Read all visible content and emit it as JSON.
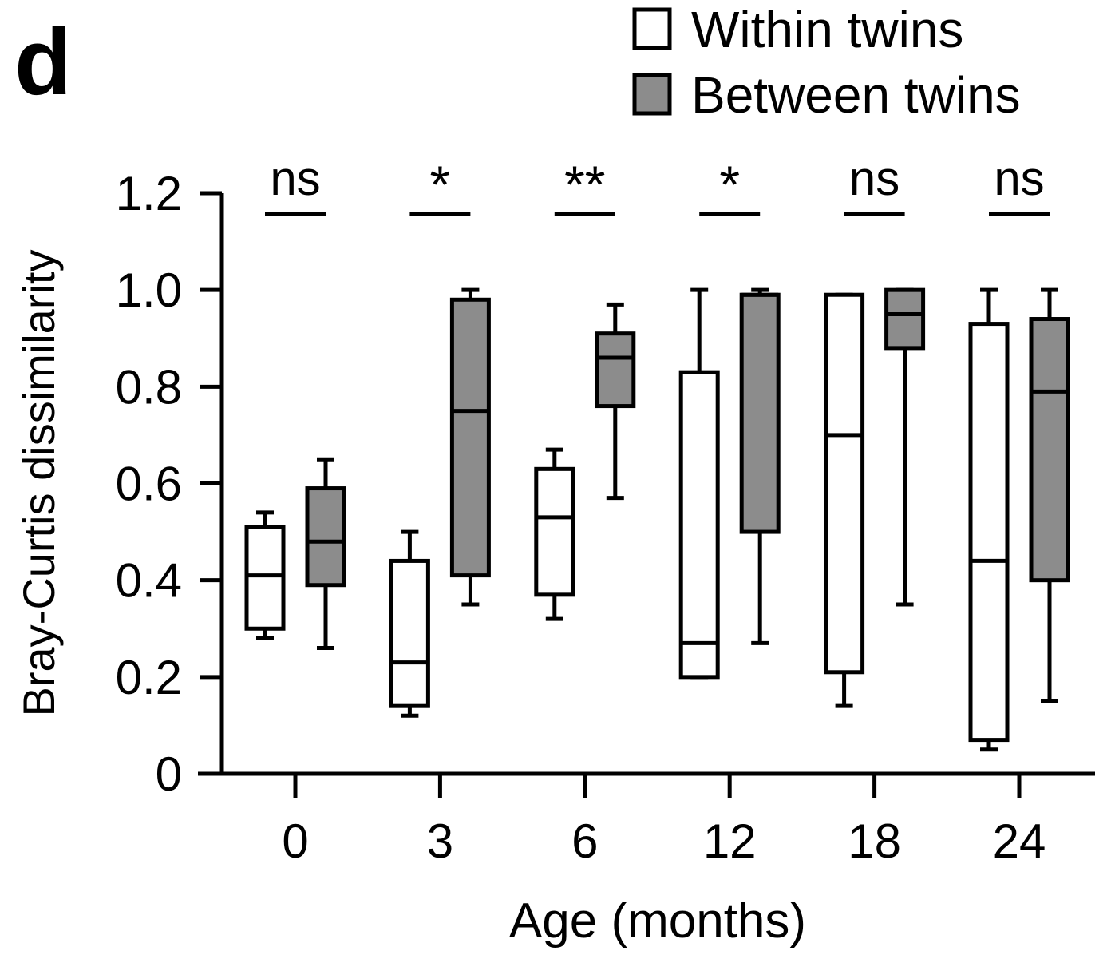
{
  "panel_label": "d",
  "chart_data": {
    "type": "box",
    "ylabel": "Bray-Curtis dissimilarity",
    "xlabel": "Age (months)",
    "ylim": [
      0,
      1.2
    ],
    "yticks": [
      "0",
      "0.2",
      "0.4",
      "0.6",
      "0.8",
      "1.0",
      "1.2"
    ],
    "categories": [
      "0",
      "3",
      "6",
      "12",
      "18",
      "24"
    ],
    "legend_position": "top-right",
    "grid": false,
    "series": [
      {
        "name": "Within twins",
        "color": "#ffffff",
        "boxes": [
          {
            "min": 0.28,
            "q1": 0.3,
            "median": 0.41,
            "q3": 0.51,
            "max": 0.54
          },
          {
            "min": 0.12,
            "q1": 0.14,
            "median": 0.23,
            "q3": 0.44,
            "max": 0.5
          },
          {
            "min": 0.32,
            "q1": 0.37,
            "median": 0.53,
            "q3": 0.63,
            "max": 0.67
          },
          {
            "min": 0.2,
            "q1": 0.2,
            "median": 0.27,
            "q3": 0.83,
            "max": 1.0
          },
          {
            "min": 0.14,
            "q1": 0.21,
            "median": 0.7,
            "q3": 0.99,
            "max": 0.99
          },
          {
            "min": 0.05,
            "q1": 0.07,
            "median": 0.44,
            "q3": 0.93,
            "max": 1.0
          }
        ]
      },
      {
        "name": "Between twins",
        "color": "#8c8c8c",
        "boxes": [
          {
            "min": 0.26,
            "q1": 0.39,
            "median": 0.48,
            "q3": 0.59,
            "max": 0.65
          },
          {
            "min": 0.35,
            "q1": 0.41,
            "median": 0.75,
            "q3": 0.98,
            "max": 1.0
          },
          {
            "min": 0.57,
            "q1": 0.76,
            "median": 0.86,
            "q3": 0.91,
            "max": 0.97
          },
          {
            "min": 0.27,
            "q1": 0.5,
            "median": 0.99,
            "q3": 0.99,
            "max": 1.0
          },
          {
            "min": 0.35,
            "q1": 0.88,
            "median": 0.95,
            "q3": 1.0,
            "max": 1.0
          },
          {
            "min": 0.15,
            "q1": 0.4,
            "median": 0.79,
            "q3": 0.94,
            "max": 1.0
          }
        ]
      }
    ],
    "significance": [
      "ns",
      "*",
      "**",
      "*",
      "ns",
      "ns"
    ]
  }
}
